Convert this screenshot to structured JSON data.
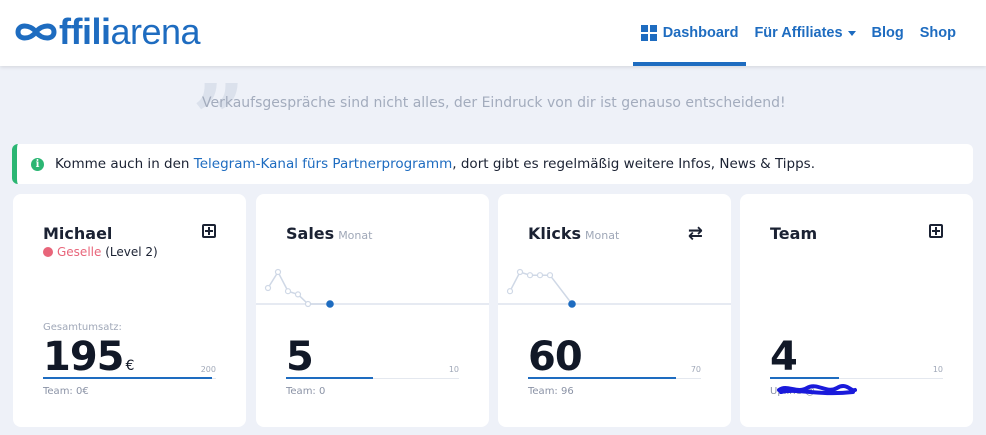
{
  "header": {
    "logo": {
      "part_bold": "ffili",
      "part_light": "arena"
    },
    "nav": [
      {
        "label": "Dashboard",
        "icon": "dashboard-grid-icon",
        "active": true
      },
      {
        "label": "Für Affiliates",
        "dropdown": true
      },
      {
        "label": "Blog"
      },
      {
        "label": "Shop"
      }
    ]
  },
  "quote": {
    "text": "Verkaufsgespräche sind nicht alles, der Eindruck von dir ist genauso entscheidend!"
  },
  "alert": {
    "icon": "info-icon",
    "before": "Komme auch in den ",
    "link": "Telegram-Kanal fürs Partnerprogramm",
    "after": ", dort gibt es regelmäßig weitere Infos, News & Tipps."
  },
  "cards": {
    "profile": {
      "name": "Michael",
      "rank": "Geselle",
      "level": "(Level 2)",
      "label": "Gesamtumsatz:",
      "value": "195",
      "unit": "€",
      "max": "200",
      "progress": 0.975,
      "footer": "Team: 0€",
      "icon": "plus-square-icon"
    },
    "sales": {
      "title": "Sales",
      "period": "Monat",
      "value": "5",
      "max": "10",
      "progress": 0.5,
      "footer": "Team: 0",
      "sparkline": [
        5,
        10,
        4,
        3,
        0,
        0
      ]
    },
    "clicks": {
      "title": "Klicks",
      "period": "Monat",
      "value": "60",
      "max": "70",
      "progress": 0.857,
      "footer": "Team: 96",
      "icon": "swap-arrows-icon",
      "sparkline": [
        4,
        10,
        9,
        9,
        9,
        0
      ]
    },
    "team": {
      "title": "Team",
      "value": "4",
      "max": "10",
      "progress": 0.4,
      "footer": "Upline @",
      "icon": "plus-square-icon"
    }
  },
  "colors": {
    "accent": "#1e6cc0",
    "success": "#2bb673",
    "rank": "#e8657a"
  }
}
